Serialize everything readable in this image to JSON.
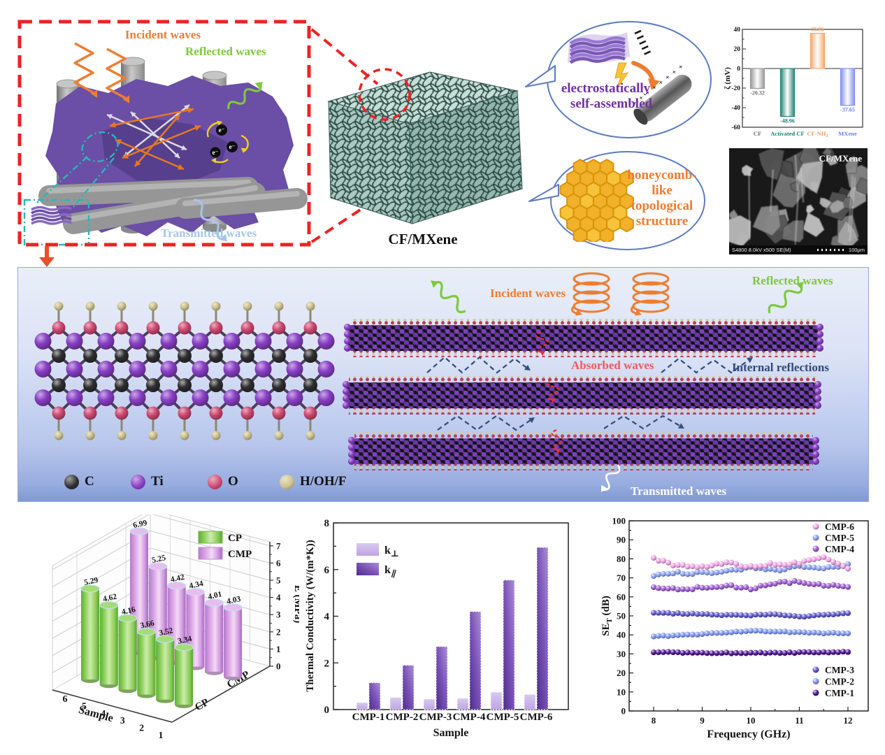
{
  "scene": {
    "p1": {
      "incident": "Incident waves",
      "reflected": "Reflected waves",
      "transmitted": "Transmitted waves",
      "electron": "e⁻"
    },
    "cube_label": "CF/MXene",
    "bubble_electrostatic": {
      "line1": "electrostatically",
      "line2": "self-assembled"
    },
    "bubble_honeycomb": {
      "line1": "honeycomb-",
      "line2": "like",
      "line3": "topological",
      "line4": "structure"
    },
    "sem": {
      "label": "CF/MXene",
      "meta": "S4800 8.0kV x500 SE(M)",
      "scale_text": "100μm"
    },
    "p2": {
      "incident": "Incident waves",
      "reflected": "Reflected waves",
      "absorbed": "Absorbed waves",
      "internal": "Internal reflections",
      "transmitted": "Transmitted waves",
      "atom_legend": [
        {
          "label": "C",
          "color": "#2f2f2f"
        },
        {
          "label": "Ti",
          "color": "#8a3fc6"
        },
        {
          "label": "O",
          "color": "#cf4a72"
        },
        {
          "label": "H/OH/F",
          "color": "#cfc48e"
        }
      ]
    }
  },
  "chart_data": [
    {
      "id": "zeta-potential",
      "type": "bar",
      "ylabel": "ζ (mV)",
      "ylim": [
        -60,
        40
      ],
      "ytick": 20,
      "categories": [
        "CF",
        "Activated CF",
        "CF-NH₂",
        "MXene"
      ],
      "values": [
        -20.32,
        -48.96,
        35.96,
        -37.65
      ],
      "colors": [
        "#9a9a9a",
        "#2a8578",
        "#f5a86e",
        "#8491f2"
      ],
      "label_colors": [
        "#6e6e6e",
        "#1f7f72",
        "#f09a5c",
        "#6d7cf0"
      ]
    },
    {
      "id": "compressive-modulus",
      "type": "bar3d",
      "zlabel": "E (MPa)",
      "xlabel": "Sample",
      "zlim": [
        0,
        7
      ],
      "categories": [
        "6",
        "5",
        "4",
        "3",
        "2",
        "1"
      ],
      "series": [
        {
          "name": "CP",
          "color": "#8ed05e",
          "values": [
            5.29,
            4.62,
            4.16,
            3.66,
            3.52,
            3.34
          ]
        },
        {
          "name": "CMP",
          "color": "#dda8e8",
          "values": [
            6.99,
            5.25,
            4.42,
            4.34,
            4.01,
            4.03
          ]
        }
      ]
    },
    {
      "id": "thermal-conductivity",
      "type": "bar",
      "xlabel": "Sample",
      "ylabel": "Thermal Conductivity (W/(m*K))",
      "ylim": [
        0,
        8
      ],
      "categories": [
        "CMP-1",
        "CMP-2",
        "CMP-3",
        "CMP-4",
        "CMP-5",
        "CMP-6"
      ],
      "series": [
        {
          "name": "k⊥",
          "color": "#cdb8ec",
          "values": [
            0.3,
            0.52,
            0.45,
            0.48,
            0.75,
            0.65
          ]
        },
        {
          "name": "k∥",
          "color": "#5a3697",
          "values": [
            1.15,
            1.9,
            2.7,
            4.2,
            5.55,
            6.95
          ]
        }
      ]
    },
    {
      "id": "emi-shielding",
      "type": "scatter",
      "xlabel": "Frequency (GHz)",
      "ylabel": "SE_T (dB)",
      "xlim": [
        8,
        12
      ],
      "ylim": [
        0,
        100
      ],
      "x_anchor": [
        8,
        8.5,
        9,
        9.5,
        10,
        10.5,
        11,
        11.5,
        12
      ],
      "series": [
        {
          "name": "CMP-1",
          "color": "#4b1091",
          "values": [
            31.0,
            30.8,
            30.6,
            30.5,
            30.5,
            30.6,
            30.7,
            30.9,
            31.0
          ]
        },
        {
          "name": "CMP-2",
          "color": "#7e93f0",
          "values": [
            39.3,
            39.7,
            40.4,
            41.4,
            42.2,
            41.9,
            41.3,
            40.9,
            41.0
          ]
        },
        {
          "name": "CMP-3",
          "color": "#5c55c9",
          "values": [
            51.6,
            51.3,
            50.9,
            50.5,
            50.4,
            50.7,
            49.5,
            50.7,
            51.2
          ]
        },
        {
          "name": "CMP-4",
          "color": "#9c59cf",
          "values": [
            65.4,
            63.9,
            64.9,
            65.9,
            64.4,
            67.2,
            68.3,
            66.2,
            64.9
          ]
        },
        {
          "name": "CMP-5",
          "color": "#8aa0f0",
          "values": [
            71.4,
            72.6,
            72.4,
            73.5,
            75.6,
            74.1,
            76.4,
            75.4,
            76.9
          ]
        },
        {
          "name": "CMP-6",
          "color": "#f0a3e4",
          "values": [
            80.2,
            76.4,
            75.6,
            77.8,
            75.9,
            77.4,
            77.7,
            81.2,
            74.6
          ]
        }
      ],
      "legend_top": [
        "CMP-6",
        "CMP-5",
        "CMP-4"
      ],
      "legend_bottom": [
        "CMP-3",
        "CMP-2",
        "CMP-1"
      ]
    }
  ]
}
